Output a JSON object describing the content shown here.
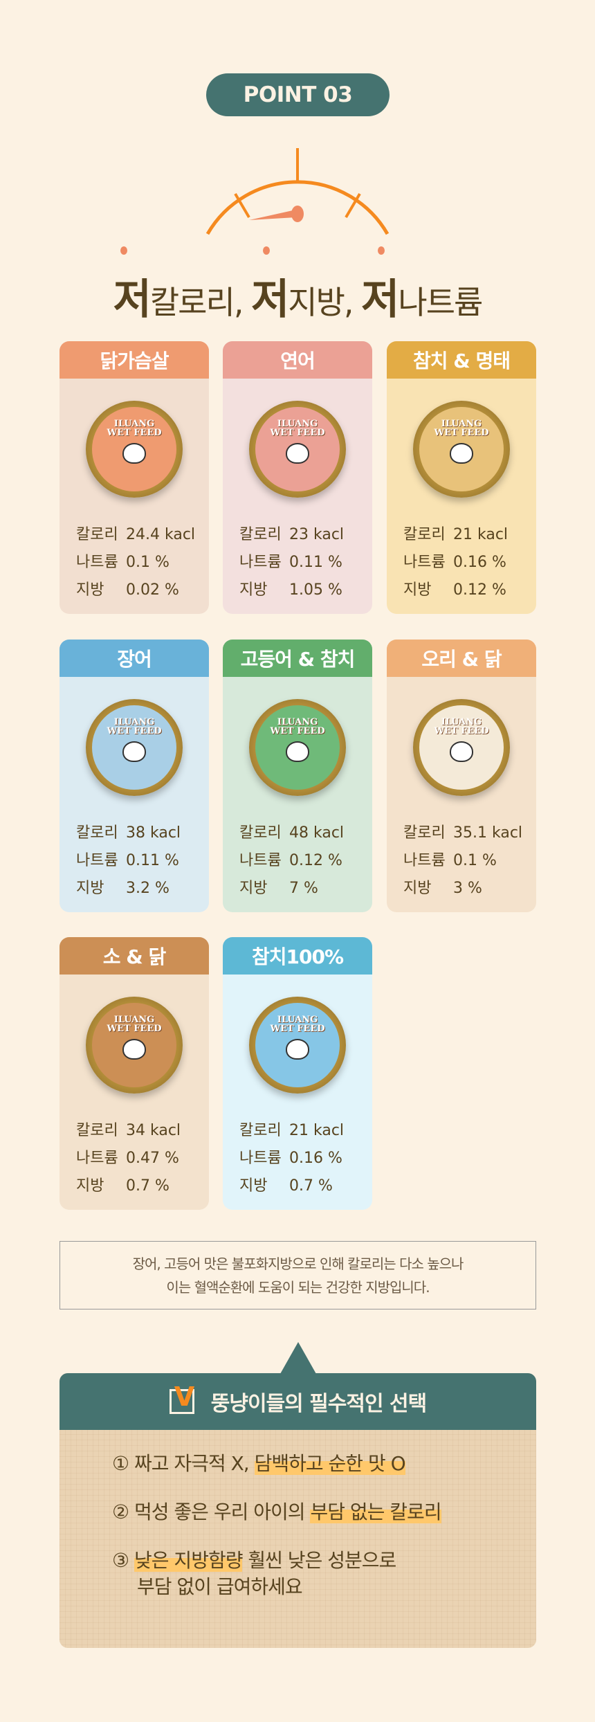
{
  "point_label": "POINT 03",
  "headline": {
    "p1_bold": "저",
    "p1": "칼로리, ",
    "p2_bold": "저",
    "p2": "지방, ",
    "p3_bold": "저",
    "p3": "나트륨"
  },
  "stat_labels": {
    "calorie": "칼로리",
    "sodium": "나트륨",
    "fat": "지방"
  },
  "can_text": {
    "brand1": "ILUANG",
    "brand2": "WET FEED"
  },
  "products": [
    {
      "name": "닭가슴살",
      "calorie": "24.4 kacl",
      "sodium": "0.1 %",
      "fat": "0.02 %",
      "header_color": "#ef9b70",
      "body_color": "#f2dfd0",
      "can_color": "#ef9b70"
    },
    {
      "name": "연어",
      "calorie": "23 kacl",
      "sodium": "0.11 %",
      "fat": "1.05 %",
      "header_color": "#eba195",
      "body_color": "#f3e0de",
      "can_color": "#eba195"
    },
    {
      "name": "참치 & 명태",
      "calorie": "21 kacl",
      "sodium": "0.16 %",
      "fat": "0.12 %",
      "header_color": "#e3ac45",
      "body_color": "#f9e3b3",
      "can_color": "#e8c27a"
    },
    {
      "name": "장어",
      "calorie": "38 kacl",
      "sodium": "0.11 %",
      "fat": "3.2 %",
      "header_color": "#69b2d9",
      "body_color": "#dcebf2",
      "can_color": "#a9cfe6"
    },
    {
      "name": "고등어 & 참치",
      "calorie": "48 kacl",
      "sodium": "0.12 %",
      "fat": "7 %",
      "header_color": "#62ae6c",
      "body_color": "#d7e9da",
      "can_color": "#6fba79"
    },
    {
      "name": "오리 & 닭",
      "calorie": "35.1 kacl",
      "sodium": "0.1 %",
      "fat": "3 %",
      "header_color": "#f0b078",
      "body_color": "#f4e2cc",
      "can_color": "#f4ead8"
    },
    {
      "name": "소 & 닭",
      "calorie": "34 kacl",
      "sodium": "0.47 %",
      "fat": "0.7 %",
      "header_color": "#cc8f55",
      "body_color": "#f3e2cd",
      "can_color": "#cc8f55"
    },
    {
      "name": "참치100%",
      "calorie": "21 kacl",
      "sodium": "0.16 %",
      "fat": "0.7 %",
      "header_color": "#5db8d5",
      "body_color": "#e1f4fa",
      "can_color": "#86c6e6"
    }
  ],
  "note": {
    "line1": "장어, 고등어 맛은 불포화지방으로 인해  칼로리는 다소 높으나",
    "line2": "이는 혈액순환에 도움이 되는 건강한 지방입니다."
  },
  "choice": {
    "title": "뚱냥이들의 필수적인 선택",
    "item1_plain": "① 짜고 자극적 X, ",
    "item1_hl": "담백하고 순한 맛 O",
    "item2_plain": "② 먹성 좋은 우리 아이의 ",
    "item2_hl": "부담 없는 칼로리",
    "item3_num": "③ ",
    "item3_hl": "낮은 지방함량",
    "item3_plain": " 훨씬 낮은 성분으로",
    "item3_line2": "부담 없이 급여하세요"
  }
}
